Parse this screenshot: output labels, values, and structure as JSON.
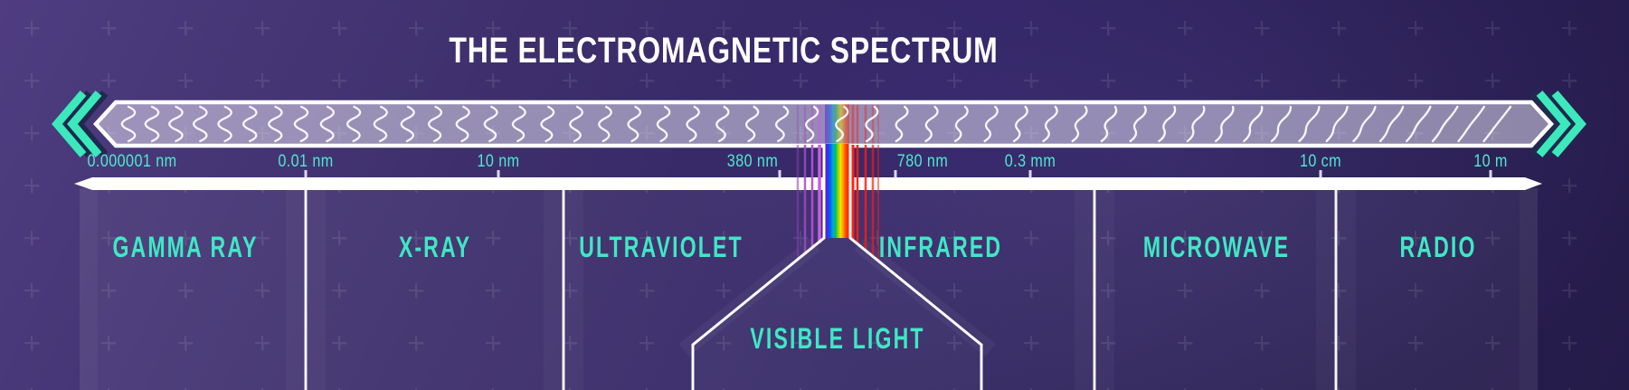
{
  "title": "THE ELECTROMAGNETIC SPECTRUM",
  "scale": {
    "labels": [
      {
        "text": "0.000001 nm"
      },
      {
        "text": "0.01 nm"
      },
      {
        "text": "10 nm"
      },
      {
        "text": "380 nm"
      },
      {
        "text": "780 nm"
      },
      {
        "text": "0.3 mm"
      },
      {
        "text": "10 cm"
      },
      {
        "text": "10 m"
      }
    ]
  },
  "bands": [
    {
      "label": "GAMMA RAY"
    },
    {
      "label": "X-RAY"
    },
    {
      "label": "ULTRAVIOLET"
    },
    {
      "label": "INFRARED"
    },
    {
      "label": "MICROWAVE"
    },
    {
      "label": "RADIO"
    }
  ],
  "visible_light": {
    "label": "VISIBLE LIGHT"
  },
  "icons": {
    "left_arrow": "double-chevron-left",
    "right_arrow": "double-chevron-right"
  },
  "colors": {
    "accent_teal": "#3fe8c4",
    "chevron_teal": "#3ce9bc",
    "background_purple": "#322565",
    "bar_fill": "rgba(234,230,248,0.52)",
    "axis_white": "#ffffff",
    "rainbow": [
      "#6a13c8",
      "#3f2bec",
      "#0064f4",
      "#00aadc",
      "#00c060",
      "#8fd400",
      "#f2e600",
      "#ffa200",
      "#ff5000",
      "#ff1000"
    ]
  }
}
